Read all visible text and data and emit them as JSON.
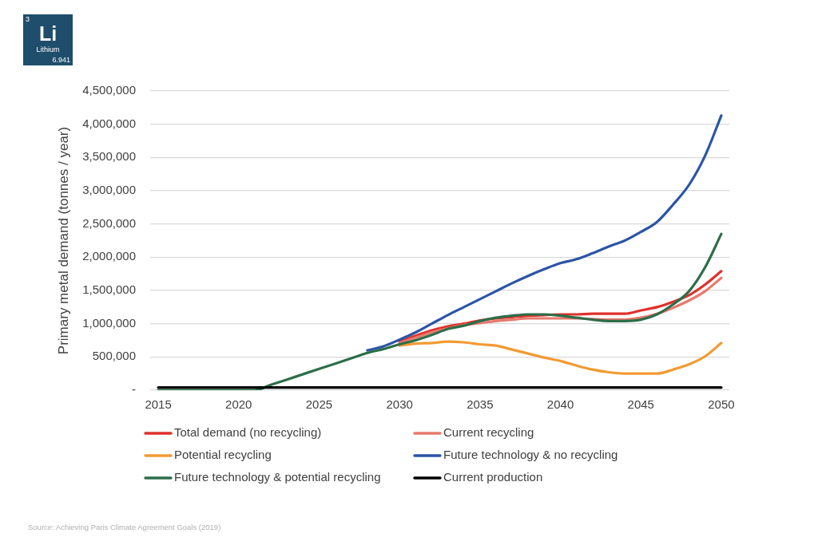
{
  "chart_data": {
    "type": "line",
    "ylabel": "Primary metal demand (tonnes / year)",
    "annotations": [
      "3",
      "Li",
      "Lithium",
      "6.941",
      "Source: Achieving Paris Climate Agreement Goals (2019)"
    ],
    "categories": [
      "2015",
      null,
      null,
      null,
      null,
      "2020",
      null,
      null,
      null,
      null,
      "2025",
      null,
      null,
      null,
      null,
      "2030",
      null,
      null,
      null,
      null,
      "2035",
      null,
      null,
      null,
      null,
      "2040",
      null,
      null,
      null,
      null,
      "2045",
      null,
      null,
      null,
      null,
      "2050"
    ],
    "series": [
      {
        "name": "Total demand (no recycling)",
        "color": "#e0312b",
        "values": [
          null,
          null,
          null,
          null,
          null,
          null,
          null,
          null,
          null,
          null,
          null,
          null,
          null,
          null,
          null,
          730000,
          820000,
          900000,
          960000,
          1000000,
          1050000,
          1080000,
          1100000,
          1120000,
          1130000,
          1140000,
          1140000,
          1150000,
          1150000,
          1150000,
          1200000,
          1250000,
          1330000,
          1430000,
          1590000,
          1790000
        ]
      },
      {
        "name": "Current recycling",
        "color": "#e8796d",
        "values": [
          null,
          null,
          null,
          null,
          null,
          null,
          null,
          null,
          null,
          null,
          null,
          null,
          null,
          null,
          null,
          710000,
          790000,
          870000,
          930000,
          980000,
          1010000,
          1040000,
          1060000,
          1080000,
          1080000,
          1080000,
          1080000,
          1070000,
          1060000,
          1060000,
          1090000,
          1150000,
          1240000,
          1350000,
          1490000,
          1690000
        ]
      },
      {
        "name": "Potential recycling",
        "color": "#f29a33",
        "values": [
          null,
          null,
          null,
          null,
          null,
          null,
          null,
          null,
          null,
          null,
          null,
          null,
          null,
          null,
          null,
          670000,
          700000,
          710000,
          730000,
          720000,
          690000,
          670000,
          610000,
          550000,
          490000,
          440000,
          370000,
          310000,
          270000,
          250000,
          250000,
          250000,
          310000,
          390000,
          510000,
          710000
        ]
      },
      {
        "name": "Future technology & no recycling",
        "color": "#2b55a5",
        "values": [
          null,
          null,
          null,
          null,
          null,
          null,
          null,
          null,
          null,
          null,
          null,
          null,
          null,
          600000,
          660000,
          760000,
          870000,
          1000000,
          1130000,
          1250000,
          1370000,
          1490000,
          1610000,
          1720000,
          1820000,
          1910000,
          1970000,
          2060000,
          2160000,
          2250000,
          2380000,
          2530000,
          2790000,
          3090000,
          3530000,
          4130000
        ]
      },
      {
        "name": "Future technology & potential recycling",
        "color": "#2c6e49",
        "values": [
          0,
          0,
          0,
          0,
          0,
          0,
          0,
          80000,
          160000,
          240000,
          320000,
          400000,
          480000,
          560000,
          620000,
          690000,
          750000,
          830000,
          920000,
          970000,
          1040000,
          1090000,
          1120000,
          1140000,
          1140000,
          1120000,
          1090000,
          1060000,
          1040000,
          1040000,
          1060000,
          1140000,
          1290000,
          1490000,
          1850000,
          2350000
        ]
      },
      {
        "name": "Current production",
        "color": "#000000",
        "values": [
          40000,
          40000,
          40000,
          40000,
          40000,
          40000,
          40000,
          40000,
          40000,
          40000,
          40000,
          40000,
          40000,
          40000,
          40000,
          40000,
          40000,
          40000,
          40000,
          40000,
          40000,
          40000,
          40000,
          40000,
          40000,
          40000,
          40000,
          40000,
          40000,
          40000,
          40000,
          40000,
          40000,
          40000,
          40000,
          40000
        ]
      }
    ],
    "ylim": [
      0,
      4500000
    ],
    "yticks": [
      {
        "value": 0,
        "label": "-"
      },
      {
        "value": 500000,
        "label": "500,000"
      },
      {
        "value": 1000000,
        "label": "1,000,000"
      },
      {
        "value": 1500000,
        "label": "1,500,000"
      },
      {
        "value": 2000000,
        "label": "2,000,000"
      },
      {
        "value": 2500000,
        "label": "2,500,000"
      },
      {
        "value": 3000000,
        "label": "3,000,000"
      },
      {
        "value": 3500000,
        "label": "3,500,000"
      },
      {
        "value": 4000000,
        "label": "4,000,000"
      },
      {
        "value": 4500000,
        "label": "4,500,000"
      }
    ],
    "grid": "y",
    "legend": "bottom",
    "marker": "none",
    "line_style": "solid"
  }
}
